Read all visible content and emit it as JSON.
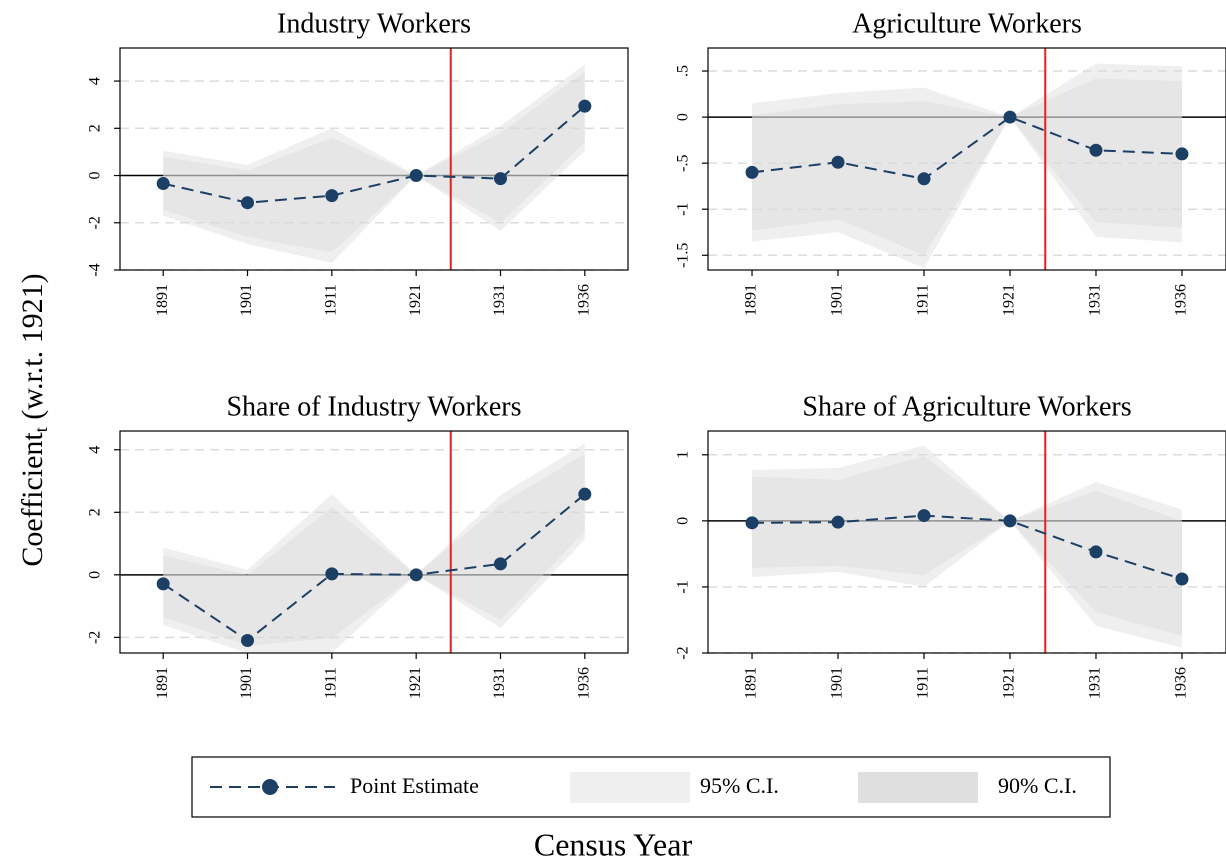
{
  "chart_data": [
    {
      "type": "line",
      "title": "Industry Workers",
      "categories": [
        "1891",
        "1901",
        "1911",
        "1921",
        "1931",
        "1936"
      ],
      "series": [
        {
          "name": "Point Estimate",
          "color": "#1c3f66",
          "values": [
            -0.34,
            -1.15,
            -0.85,
            0,
            -0.13,
            2.94
          ]
        },
        {
          "name": "95% C.I.",
          "color": "#d9d9d9",
          "lower": [
            -1.7,
            -2.9,
            -3.7,
            0,
            -2.35,
            1.05
          ],
          "upper": [
            1.05,
            0.45,
            2.0,
            0,
            2.1,
            4.7
          ]
        },
        {
          "name": "90% C.I.",
          "color": "#d9d9d9",
          "lower": [
            -1.45,
            -2.6,
            -3.25,
            0,
            -2.0,
            1.4
          ],
          "upper": [
            0.8,
            0.2,
            1.6,
            0,
            1.8,
            4.4
          ]
        }
      ],
      "ylim": [
        -4,
        5.4
      ],
      "yticks": [
        -4,
        -2,
        0,
        2,
        4
      ],
      "grid": true,
      "vline_color": "#e8201a"
    },
    {
      "type": "line",
      "title": "Agriculture Workers",
      "categories": [
        "1891",
        "1901",
        "1911",
        "1921",
        "1931",
        "1936"
      ],
      "series": [
        {
          "name": "Point Estimate",
          "color": "#1c3f66",
          "values": [
            -0.6,
            -0.49,
            -0.67,
            0,
            -0.36,
            -0.4
          ]
        },
        {
          "name": "95% C.I.",
          "color": "#d9d9d9",
          "lower": [
            -1.35,
            -1.25,
            -1.64,
            0,
            -1.3,
            -1.36
          ],
          "upper": [
            0.15,
            0.26,
            0.32,
            0,
            0.58,
            0.55
          ]
        },
        {
          "name": "90% C.I.",
          "color": "#d9d9d9",
          "lower": [
            -1.23,
            -1.11,
            -1.5,
            0,
            -1.14,
            -1.2
          ],
          "upper": [
            0.02,
            0.14,
            0.17,
            0,
            0.42,
            0.39
          ]
        }
      ],
      "ylim": [
        -1.66,
        0.75
      ],
      "yticks": [
        {
          "value": -1.5,
          "label": "-1.5"
        },
        {
          "value": -1,
          "label": "-1"
        },
        {
          "value": -0.5,
          "label": "-.5"
        },
        0,
        {
          "value": 0.5,
          "label": ".5"
        }
      ],
      "grid": true,
      "vline_color": "#e8201a"
    },
    {
      "type": "line",
      "title": "Share of Industry Workers",
      "categories": [
        "1891",
        "1901",
        "1911",
        "1921",
        "1931",
        "1936"
      ],
      "series": [
        {
          "name": "Point Estimate",
          "color": "#1c3f66",
          "values": [
            -0.29,
            -2.1,
            0.03,
            0,
            0.35,
            2.58
          ]
        },
        {
          "name": "95% C.I.",
          "color": "#d9d9d9",
          "lower": [
            -1.6,
            -2.5,
            -2.5,
            0,
            -1.7,
            1.13
          ],
          "upper": [
            0.87,
            0.16,
            2.58,
            0,
            2.55,
            4.2
          ]
        },
        {
          "name": "90% C.I.",
          "color": "#d9d9d9",
          "lower": [
            -1.35,
            -2.26,
            -2.03,
            0,
            -1.45,
            1.4
          ],
          "upper": [
            0.61,
            0.0,
            2.16,
            0,
            2.26,
            3.87
          ]
        }
      ],
      "ylim": [
        -2.5,
        4.6
      ],
      "yticks": [
        -2,
        0,
        2,
        4
      ],
      "grid": true,
      "vline_color": "#e8201a"
    },
    {
      "type": "line",
      "title": "Share of Agriculture Workers",
      "categories": [
        "1891",
        "1901",
        "1911",
        "1921",
        "1931",
        "1936"
      ],
      "series": [
        {
          "name": "Point Estimate",
          "color": "#1c3f66",
          "values": [
            -0.03,
            -0.02,
            0.08,
            0,
            -0.47,
            -0.88
          ]
        },
        {
          "name": "95% C.I.",
          "color": "#d9d9d9",
          "lower": [
            -0.85,
            -0.77,
            -1.0,
            0,
            -1.59,
            -1.92
          ],
          "upper": [
            0.77,
            0.8,
            1.14,
            0,
            0.59,
            0.17
          ]
        },
        {
          "name": "90% C.I.",
          "color": "#d9d9d9",
          "lower": [
            -0.71,
            -0.68,
            -0.82,
            0,
            -1.38,
            -1.74
          ],
          "upper": [
            0.67,
            0.62,
            0.98,
            0,
            0.45,
            0.0
          ]
        }
      ],
      "ylim": [
        -2,
        1.36
      ],
      "yticks": [
        -2,
        -1,
        0,
        1
      ],
      "grid": true,
      "vline_color": "#e8201a"
    }
  ],
  "y_label": {
    "main": "Coefficient",
    "subscript": "t",
    "rest": " (w.r.t. 1921)"
  },
  "x_label": "Census Year"
}
